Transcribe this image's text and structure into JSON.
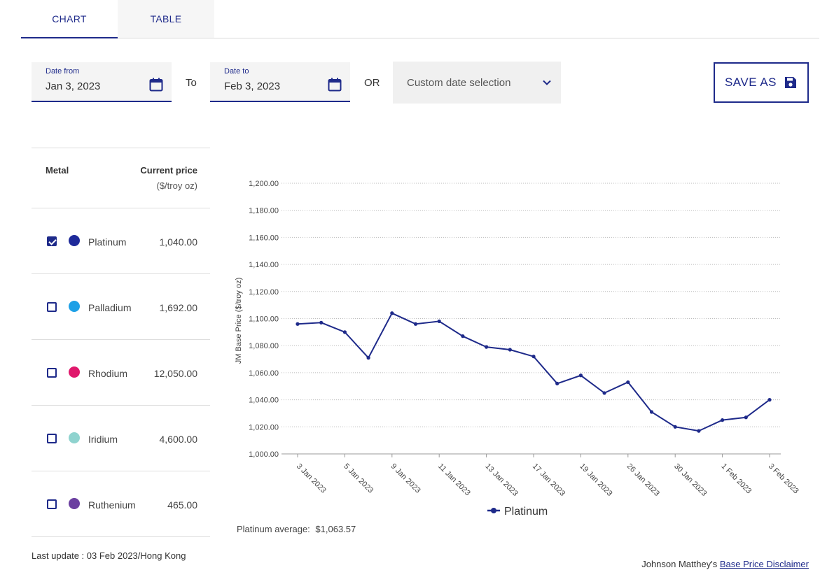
{
  "tabs": [
    {
      "label": "CHART",
      "active": true
    },
    {
      "label": "TABLE",
      "active": false
    }
  ],
  "date_from": {
    "label": "Date from",
    "value": "Jan 3, 2023"
  },
  "to_label": "To",
  "date_to": {
    "label": "Date to",
    "value": "Feb 3, 2023"
  },
  "or_label": "OR",
  "custom_select": {
    "value": "Custom date selection",
    "icon": "chevron-down-icon"
  },
  "save_button": {
    "label": "SAVE AS",
    "icon": "floppy-disk-icon"
  },
  "metal_table": {
    "header_metal": "Metal",
    "header_price": "Current price",
    "header_unit": "($/troy oz)",
    "rows": [
      {
        "name": "Platinum",
        "price": "1,040.00",
        "checked": true,
        "color": "#1e2a9a"
      },
      {
        "name": "Palladium",
        "price": "1,692.00",
        "checked": false,
        "color": "#1ea0e6"
      },
      {
        "name": "Rhodium",
        "price": "12,050.00",
        "checked": false,
        "color": "#e0186c"
      },
      {
        "name": "Iridium",
        "price": "4,600.00",
        "checked": false,
        "color": "#8fd3cf"
      },
      {
        "name": "Ruthenium",
        "price": "465.00",
        "checked": false,
        "color": "#6b3fa0"
      }
    ]
  },
  "last_update": "Last update : 03 Feb 2023/Hong Kong",
  "chart_avg": {
    "label": "Platinum average:",
    "value": "$1,063.57"
  },
  "disclaimer": {
    "prefix": "Johnson Matthey's",
    "link": "Base Price Disclaimer"
  },
  "colors": {
    "accent": "#1e2a8a",
    "line": "#1e2a8a"
  },
  "chart_data": {
    "type": "line",
    "ylabel": "JM Base Price ($/troy oz)",
    "xlabel": "",
    "ylim": [
      1000,
      1200
    ],
    "yticks": [
      "1,000.00",
      "1,020.00",
      "1,040.00",
      "1,060.00",
      "1,080.00",
      "1,100.00",
      "1,120.00",
      "1,140.00",
      "1,160.00",
      "1,180.00",
      "1,200.00"
    ],
    "grid": true,
    "legend": "bottom",
    "x_tick_labels": [
      "3 Jan 2023",
      "5 Jan 2023",
      "9 Jan 2023",
      "11 Jan 2023",
      "13 Jan 2023",
      "17 Jan 2023",
      "19 Jan 2023",
      "26 Jan 2023",
      "30 Jan 2023",
      "1 Feb 2023",
      "3 Feb 2023"
    ],
    "series": [
      {
        "name": "Platinum",
        "x": [
          "3 Jan 2023",
          "4 Jan 2023",
          "5 Jan 2023",
          "6 Jan 2023",
          "9 Jan 2023",
          "10 Jan 2023",
          "11 Jan 2023",
          "12 Jan 2023",
          "13 Jan 2023",
          "16 Jan 2023",
          "17 Jan 2023",
          "18 Jan 2023",
          "19 Jan 2023",
          "20 Jan 2023",
          "26 Jan 2023",
          "27 Jan 2023",
          "30 Jan 2023",
          "31 Jan 2023",
          "1 Feb 2023",
          "2 Feb 2023",
          "3 Feb 2023"
        ],
        "values": [
          1096,
          1097,
          1090,
          1071,
          1104,
          1096,
          1098,
          1087,
          1079,
          1077,
          1072,
          1052,
          1058,
          1045,
          1053,
          1031,
          1020,
          1017,
          1025,
          1027,
          1040
        ]
      }
    ]
  }
}
